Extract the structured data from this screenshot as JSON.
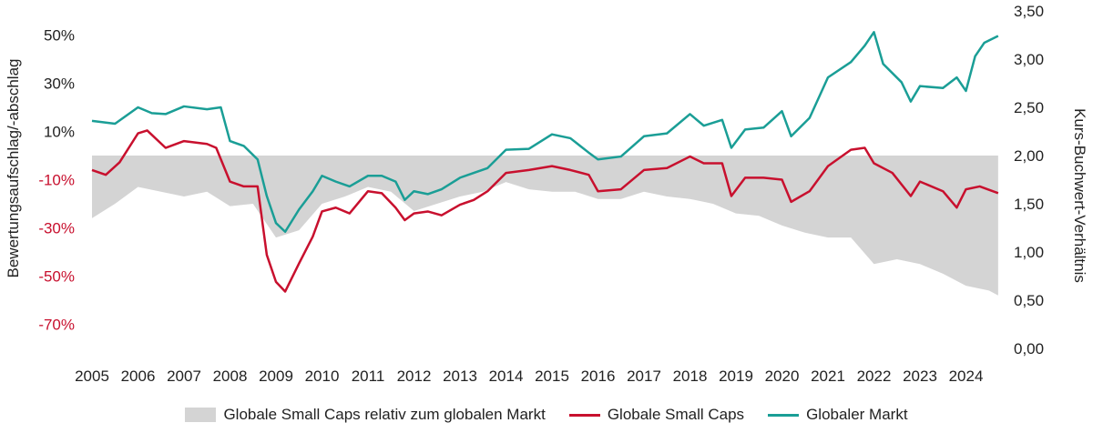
{
  "chart_data": {
    "type": "line",
    "title": "",
    "ylabel_left": "Bewertungsaufschlag/-abschlag",
    "ylabel_right": "Kurs-Buchwert-Verhältnis",
    "xlim": [
      2005,
      2024.75
    ],
    "ylim_left": [
      -70,
      50
    ],
    "ylim_right": [
      0,
      3.5
    ],
    "x_ticks": [
      "2005",
      "2006",
      "2007",
      "2008",
      "2009",
      "2010",
      "2011",
      "2012",
      "2013",
      "2014",
      "2015",
      "2016",
      "2017",
      "2018",
      "2019",
      "2020",
      "2021",
      "2022",
      "2023",
      "2024"
    ],
    "left_ticks": [
      {
        "v": 50,
        "label": "50%"
      },
      {
        "v": 30,
        "label": "30%"
      },
      {
        "v": 10,
        "label": "10%"
      },
      {
        "v": -10,
        "label": "-10%"
      },
      {
        "v": -30,
        "label": "-30%"
      },
      {
        "v": -50,
        "label": "-50%"
      },
      {
        "v": -70,
        "label": "-70%"
      }
    ],
    "right_ticks": [
      {
        "v": 3.5,
        "label": "3,50"
      },
      {
        "v": 3.0,
        "label": "3,00"
      },
      {
        "v": 2.5,
        "label": "2,50"
      },
      {
        "v": 2.0,
        "label": "2,00"
      },
      {
        "v": 1.5,
        "label": "1,50"
      },
      {
        "v": 1.0,
        "label": "1,00"
      },
      {
        "v": 0.5,
        "label": "0,50"
      },
      {
        "v": 0,
        "label": "0,00"
      }
    ],
    "series": [
      {
        "name": "Globale Small Caps relativ zum globalen Markt",
        "type": "area",
        "axis": "left",
        "color": "#d4d4d4",
        "x": [
          2005,
          2005.5,
          2006,
          2006.5,
          2007,
          2007.5,
          2008,
          2008.5,
          2009,
          2009.5,
          2010,
          2010.5,
          2011,
          2011.5,
          2012,
          2012.5,
          2013,
          2013.5,
          2014,
          2014.5,
          2015,
          2015.5,
          2016,
          2016.5,
          2017,
          2017.5,
          2018,
          2018.5,
          2019,
          2019.5,
          2020,
          2020.5,
          2021,
          2021.5,
          2022,
          2022.5,
          2023,
          2023.5,
          2024,
          2024.5,
          2024.7
        ],
        "y": [
          -26,
          -20,
          -13,
          -15,
          -17,
          -15,
          -21,
          -20,
          -34,
          -31,
          -20,
          -17,
          -13,
          -15,
          -23,
          -20,
          -17,
          -15,
          -11,
          -14,
          -15,
          -15,
          -18,
          -18,
          -15,
          -17,
          -18,
          -20,
          -24,
          -25,
          -29,
          -32,
          -34,
          -34,
          -45,
          -43,
          -45,
          -49,
          -54,
          -56,
          -58
        ]
      },
      {
        "name": "Globale Small Caps",
        "type": "line",
        "axis": "right",
        "color": "#c8102e",
        "x": [
          2005,
          2005.3,
          2005.6,
          2006,
          2006.2,
          2006.6,
          2007,
          2007.5,
          2007.7,
          2008,
          2008.3,
          2008.6,
          2008.8,
          2009,
          2009.2,
          2009.5,
          2009.8,
          2010,
          2010.3,
          2010.6,
          2011,
          2011.3,
          2011.6,
          2011.8,
          2012,
          2012.3,
          2012.6,
          2013,
          2013.3,
          2013.6,
          2014,
          2014.5,
          2015,
          2015.4,
          2015.8,
          2016,
          2016.5,
          2017,
          2017.5,
          2018,
          2018.3,
          2018.7,
          2018.9,
          2019.2,
          2019.6,
          2020,
          2020.2,
          2020.6,
          2021,
          2021.5,
          2021.8,
          2022,
          2022.4,
          2022.8,
          2023,
          2023.5,
          2023.8,
          2024,
          2024.3,
          2024.7
        ],
        "y": [
          1.85,
          1.8,
          1.93,
          2.23,
          2.26,
          2.08,
          2.15,
          2.12,
          2.08,
          1.73,
          1.68,
          1.68,
          0.97,
          0.69,
          0.59,
          0.88,
          1.16,
          1.42,
          1.46,
          1.4,
          1.63,
          1.61,
          1.46,
          1.33,
          1.4,
          1.42,
          1.38,
          1.49,
          1.54,
          1.63,
          1.82,
          1.85,
          1.89,
          1.85,
          1.8,
          1.63,
          1.65,
          1.85,
          1.87,
          1.99,
          1.92,
          1.92,
          1.58,
          1.77,
          1.77,
          1.75,
          1.52,
          1.63,
          1.89,
          2.06,
          2.08,
          1.92,
          1.82,
          1.58,
          1.73,
          1.63,
          1.46,
          1.65,
          1.68,
          1.61
        ]
      },
      {
        "name": "Globaler Markt",
        "type": "line",
        "axis": "right",
        "color": "#1a9e96",
        "x": [
          2005,
          2005.5,
          2006,
          2006.3,
          2006.6,
          2007,
          2007.5,
          2007.8,
          2008,
          2008.3,
          2008.6,
          2008.8,
          2009,
          2009.2,
          2009.5,
          2009.8,
          2010,
          2010.3,
          2010.6,
          2011,
          2011.3,
          2011.6,
          2011.8,
          2012,
          2012.3,
          2012.6,
          2013,
          2013.3,
          2013.6,
          2014,
          2014.5,
          2015,
          2015.4,
          2015.8,
          2016,
          2016.5,
          2017,
          2017.5,
          2018,
          2018.3,
          2018.7,
          2018.9,
          2019.2,
          2019.6,
          2020,
          2020.2,
          2020.6,
          2021,
          2021.5,
          2021.8,
          2022,
          2022.2,
          2022.6,
          2022.8,
          2023,
          2023.5,
          2023.8,
          2024,
          2024.2,
          2024.4,
          2024.7
        ],
        "y": [
          2.36,
          2.33,
          2.5,
          2.44,
          2.43,
          2.51,
          2.48,
          2.5,
          2.15,
          2.1,
          1.96,
          1.58,
          1.3,
          1.21,
          1.44,
          1.63,
          1.79,
          1.73,
          1.68,
          1.79,
          1.79,
          1.73,
          1.54,
          1.63,
          1.6,
          1.65,
          1.77,
          1.82,
          1.87,
          2.06,
          2.07,
          2.22,
          2.18,
          2.03,
          1.96,
          1.99,
          2.2,
          2.23,
          2.43,
          2.31,
          2.37,
          2.08,
          2.27,
          2.29,
          2.46,
          2.2,
          2.39,
          2.81,
          2.97,
          3.14,
          3.28,
          2.95,
          2.76,
          2.56,
          2.72,
          2.7,
          2.81,
          2.67,
          3.03,
          3.17,
          3.24
        ]
      }
    ]
  }
}
